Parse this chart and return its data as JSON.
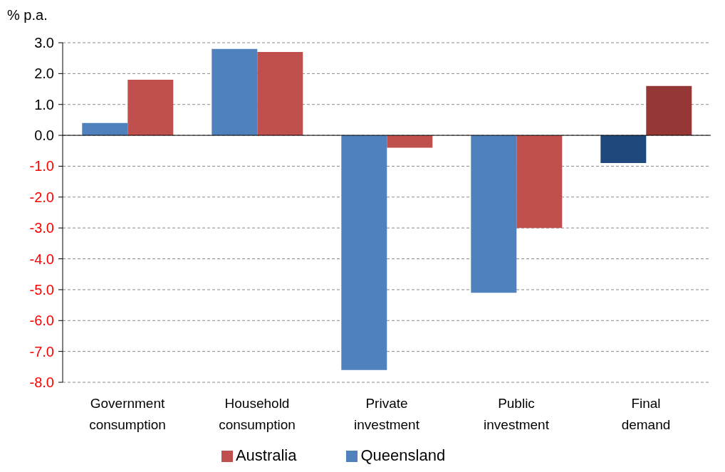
{
  "chart_data": {
    "type": "bar",
    "ylabel": "% p.a.",
    "categories": [
      "Government consumption",
      "Household consumption",
      "Private investment",
      "Public investment",
      "Final demand"
    ],
    "series": [
      {
        "name": "Queensland",
        "color": "#4f81bd",
        "colors": [
          "#4f81bd",
          "#4f81bd",
          "#4f81bd",
          "#4f81bd",
          "#1f497d"
        ],
        "values": [
          0.4,
          2.8,
          -7.6,
          -5.1,
          -0.9
        ]
      },
      {
        "name": "Australia",
        "color": "#c0504d",
        "colors": [
          "#c0504d",
          "#c0504d",
          "#c0504d",
          "#c0504d",
          "#953735"
        ],
        "values": [
          1.8,
          2.7,
          -0.4,
          -3.0,
          1.6
        ]
      }
    ],
    "ylim": [
      -8,
      3
    ],
    "yticks": [
      {
        "value": -8,
        "label": "-8.0"
      },
      {
        "value": -7,
        "label": "-7.0"
      },
      {
        "value": -6,
        "label": "-6.0"
      },
      {
        "value": -5,
        "label": "-5.0"
      },
      {
        "value": -4,
        "label": "-4.0"
      },
      {
        "value": -3,
        "label": "-3.0"
      },
      {
        "value": -2,
        "label": "-2.0"
      },
      {
        "value": -1,
        "label": "-1.0"
      },
      {
        "value": 0,
        "label": "0.0"
      },
      {
        "value": 1,
        "label": "1.0"
      },
      {
        "value": 2,
        "label": "2.0"
      },
      {
        "value": 3,
        "label": "3.0"
      }
    ],
    "grid": "y",
    "legend": "bottom"
  }
}
